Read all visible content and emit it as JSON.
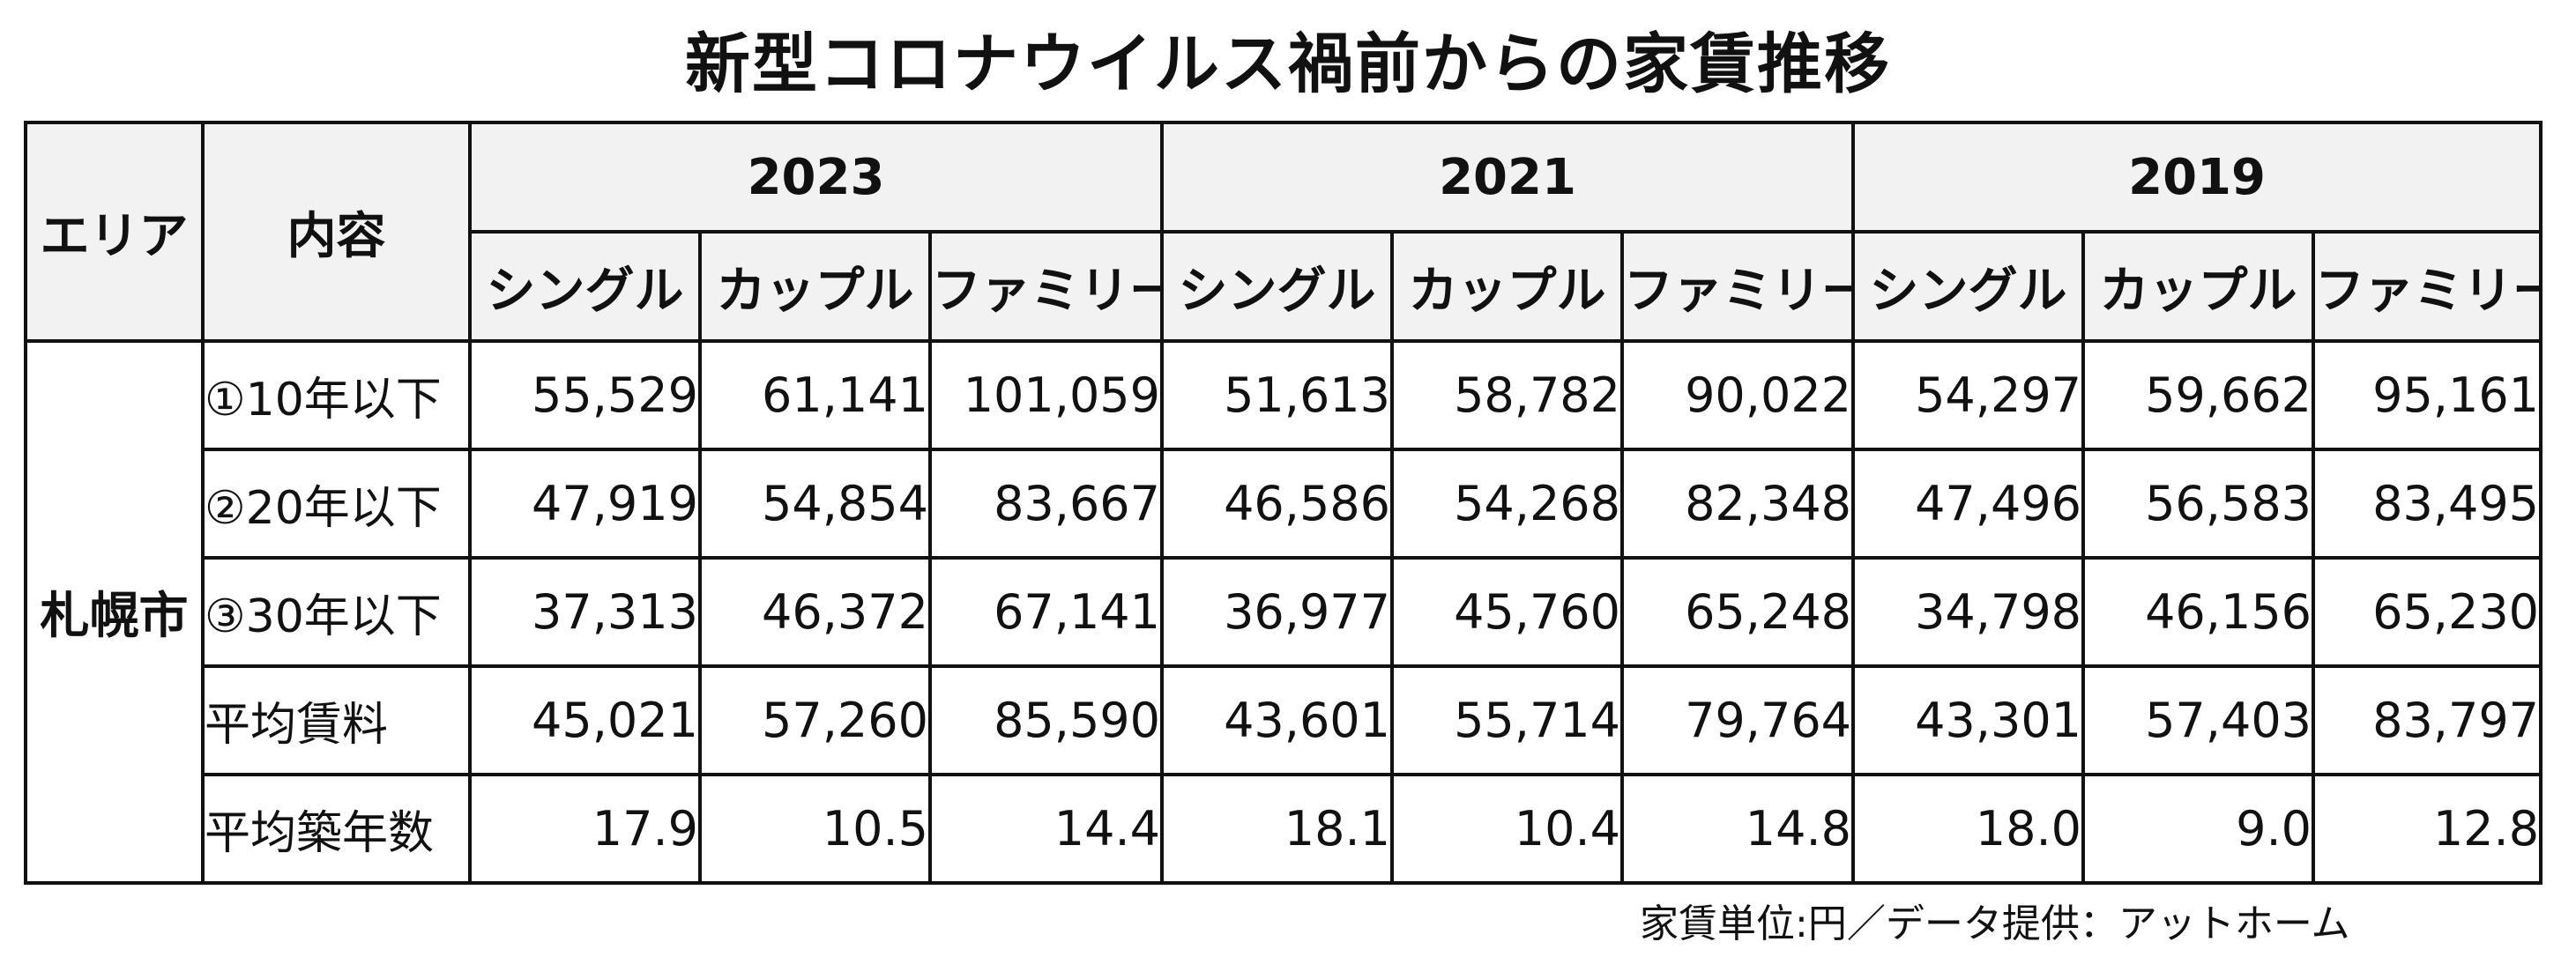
{
  "chart_data": {
    "type": "table",
    "title": "新型コロナウイルス禍前からの家賃推移",
    "header": {
      "area": "エリア",
      "content": "内容"
    },
    "years": [
      "2023",
      "2021",
      "2019"
    ],
    "sub_columns": [
      "シングル",
      "カップル",
      "ファミリー"
    ],
    "area": "札幌市",
    "rows": [
      {
        "label": "①10年以下",
        "values": [
          "55,529",
          "61,141",
          "101,059",
          "51,613",
          "58,782",
          "90,022",
          "54,297",
          "59,662",
          "95,161"
        ]
      },
      {
        "label": "②20年以下",
        "values": [
          "47,919",
          "54,854",
          "83,667",
          "46,586",
          "54,268",
          "82,348",
          "47,496",
          "56,583",
          "83,495"
        ]
      },
      {
        "label": "③30年以下",
        "values": [
          "37,313",
          "46,372",
          "67,141",
          "36,977",
          "45,760",
          "65,248",
          "34,798",
          "46,156",
          "65,230"
        ]
      },
      {
        "label": "平均賃料",
        "values": [
          "45,021",
          "57,260",
          "85,590",
          "43,601",
          "55,714",
          "79,764",
          "43,301",
          "57,403",
          "83,797"
        ]
      },
      {
        "label": "平均築年数",
        "values": [
          "17.9",
          "10.5",
          "14.4",
          "18.1",
          "10.4",
          "14.8",
          "18.0",
          "9.0",
          "12.8"
        ]
      }
    ],
    "note": "家賃単位:円／データ提供：アットホーム"
  }
}
